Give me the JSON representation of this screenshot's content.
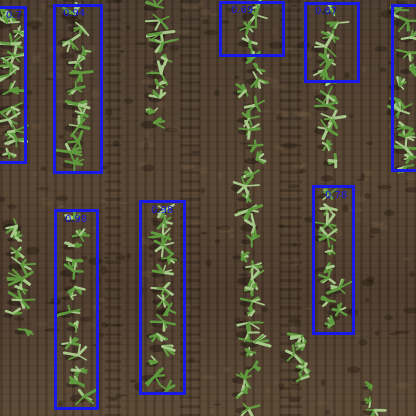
{
  "image": {
    "subject": "aerial view of seedling rows in soil with detection boxes",
    "colors": {
      "box": "#1a1ae6",
      "soil": "#4e3d2e",
      "plant": "#5f9a3e",
      "plant_highlight": "#a7c98a"
    }
  },
  "detections": [
    {
      "score": "0.7"
    },
    {
      "score": "0.94"
    },
    {
      "score": "0.69"
    },
    {
      "score": "0.67"
    },
    {
      "score": ""
    },
    {
      "score": "0.98"
    },
    {
      "score": "0.98"
    },
    {
      "score": "0.78"
    }
  ]
}
